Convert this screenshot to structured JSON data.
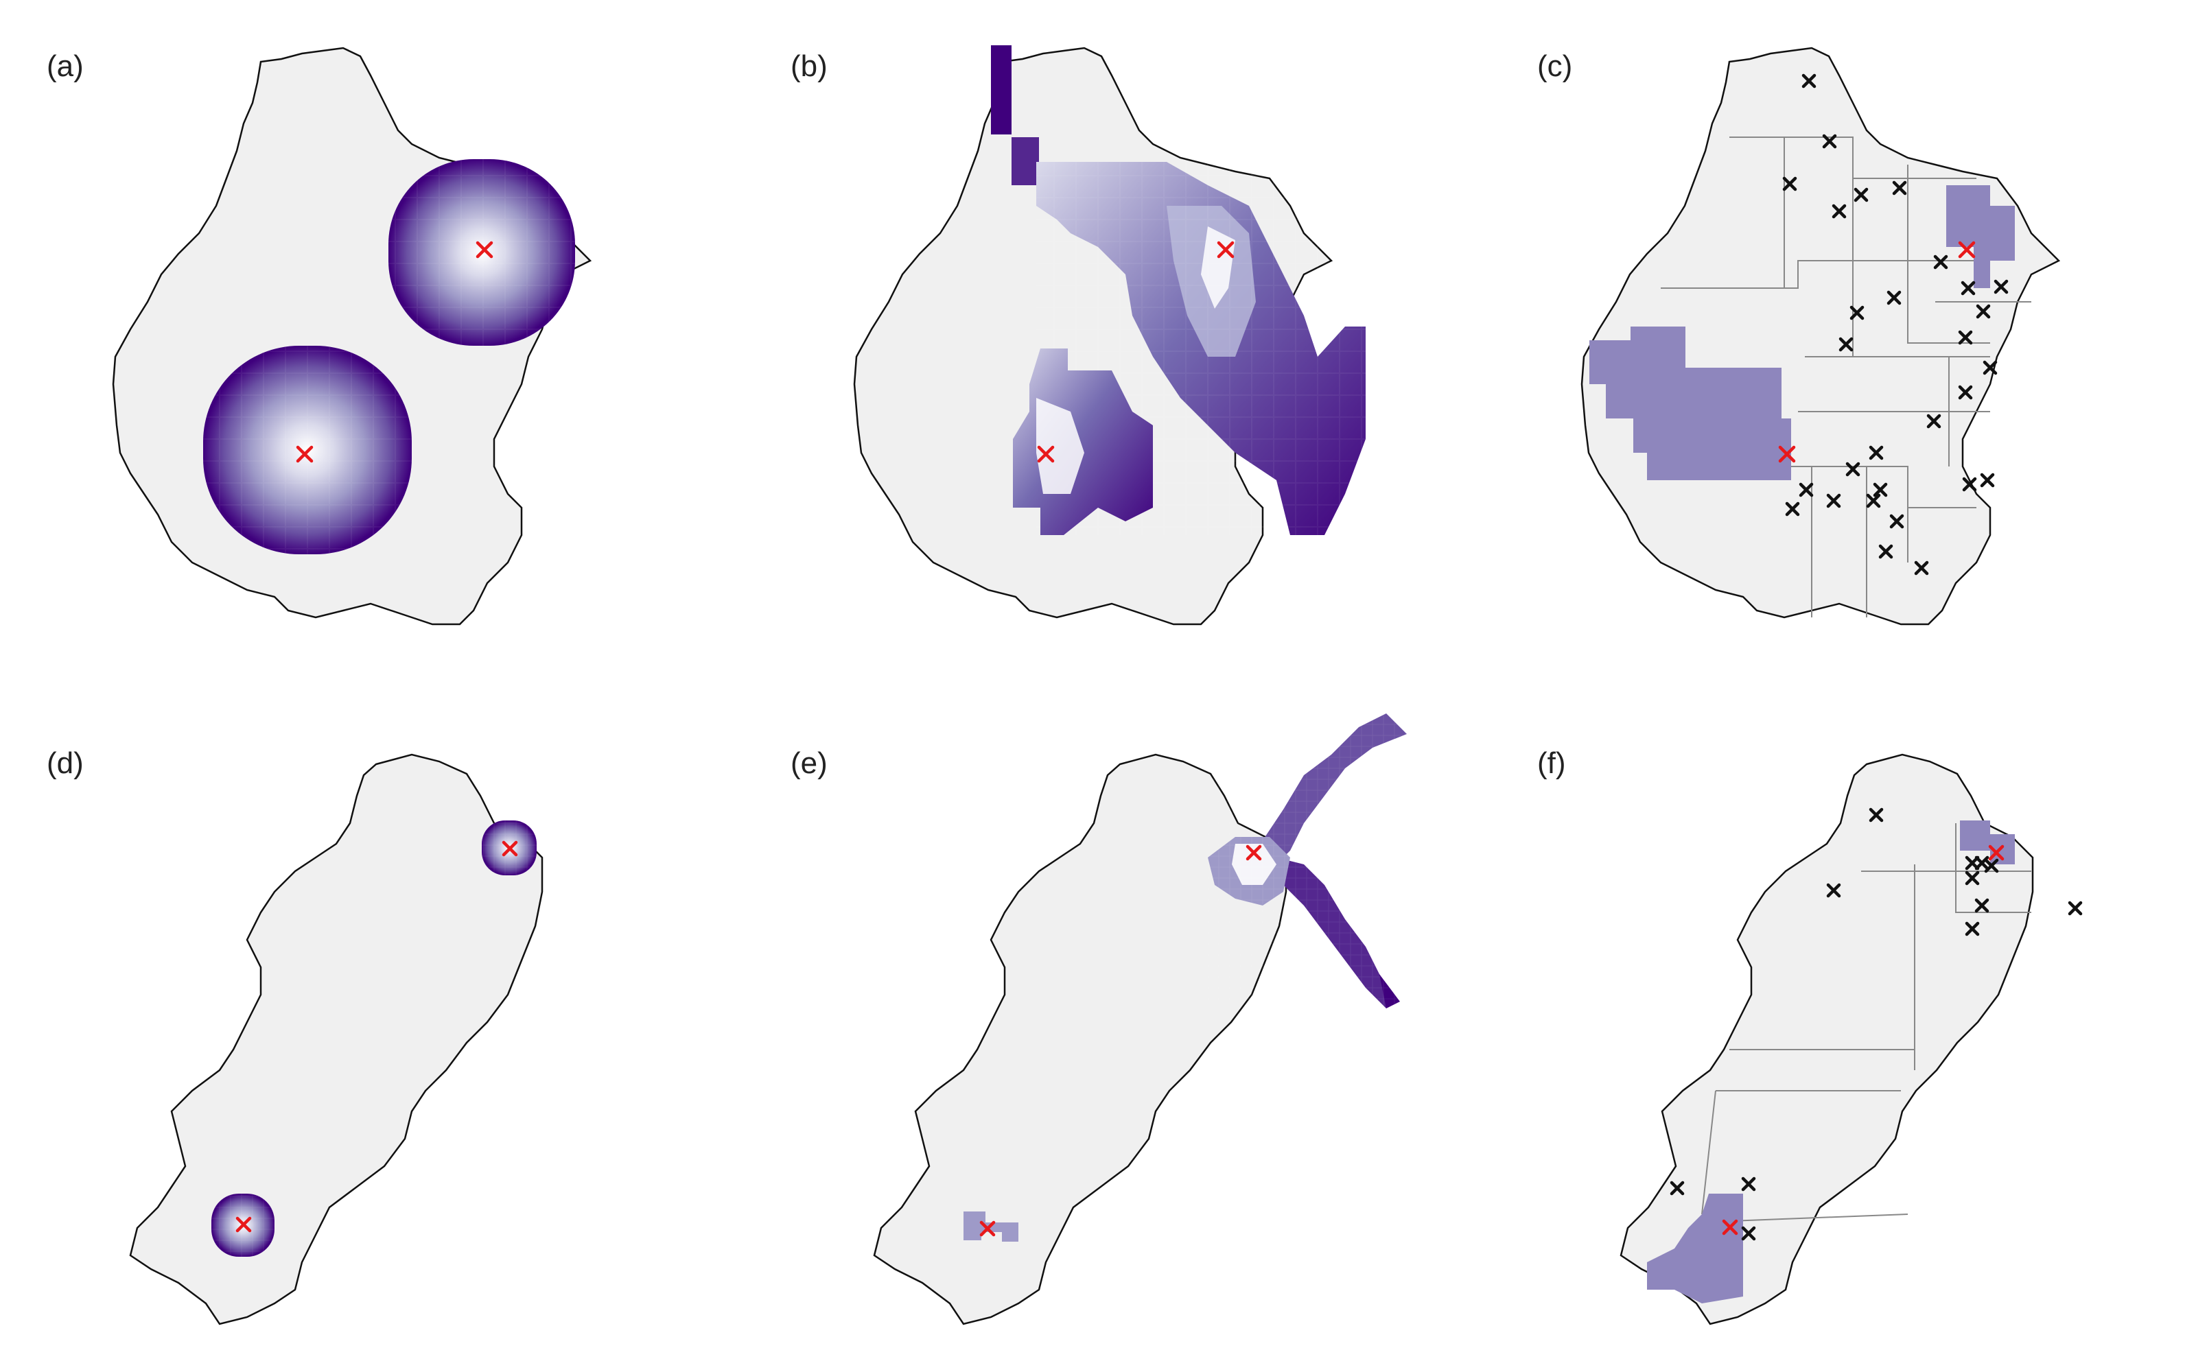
{
  "panels": [
    {
      "id": "a",
      "label": "(a)"
    },
    {
      "id": "b",
      "label": "(b)"
    },
    {
      "id": "c",
      "label": "(c)"
    },
    {
      "id": "d",
      "label": "(d)"
    },
    {
      "id": "e",
      "label": "(e)"
    },
    {
      "id": "f",
      "label": "(f)"
    }
  ],
  "colors": {
    "background": "#ffffff",
    "land_fill": "#f0f0f0",
    "border_line": "#111111",
    "grid_line": "#888888",
    "sel_zone_fill": "#8e86bd",
    "dark": "#3f007d",
    "mid": "#6a51a3",
    "light": "#bcbddc",
    "center": "#ffffff",
    "cross_red": "#e8191b",
    "cross_black": "#111111"
  },
  "icons": {
    "marker": "x-cross",
    "selected_marker": "red-x-cross"
  }
}
